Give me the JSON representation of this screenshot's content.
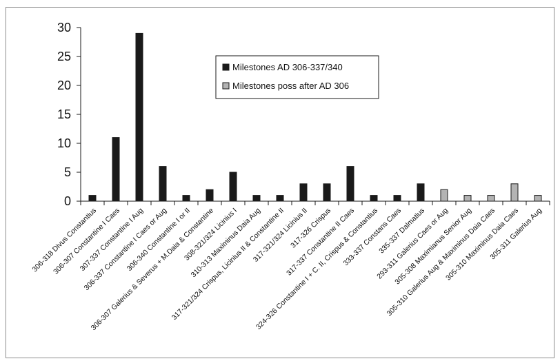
{
  "chart_data": {
    "type": "bar",
    "title": "",
    "xlabel": "",
    "ylabel": "",
    "ylim": [
      0,
      30
    ],
    "yticks": [
      0,
      5,
      10,
      15,
      20,
      25,
      30
    ],
    "grid": false,
    "legend_position": "top-center",
    "categories": [
      "306-318 Divus Constantius",
      "306-307 Constantine I Caes",
      "307-337 Constantine I Aug",
      "306-337 Constantine I Caes or Aug",
      "306-340 Constantine I or II",
      "306-307 Galerius & Severus + M.Daia & Constantine",
      "308-321/324 Licinius I",
      "310-313 Maximinus Daia Aug",
      "317-321/324 Crispus, Licinius II & Constantine II",
      "317-321/324 Licinius II",
      "317-326 Crispus",
      "317-337 Constantine II Caes",
      "324-326 Constantine I + C. II, Crispus & Constantius",
      "333-337 Constans Caes",
      "335-337 Dalmatius",
      "293-311 Galerius Caes or Aug",
      "305-308 Maximianus Senior Aug",
      "305-310 Galerius Aug & Maximinus Daia Caes",
      "305-310 Maximinus Daia Caes",
      "305-311 Galerius Aug"
    ],
    "series": [
      {
        "name": "Milestones AD 306-337/340",
        "color": "#1a1a1a",
        "values": [
          1,
          11,
          29,
          6,
          1,
          2,
          5,
          1,
          1,
          3,
          3,
          6,
          1,
          1,
          3,
          0,
          0,
          0,
          0,
          0
        ]
      },
      {
        "name": "Milestones poss after AD 306",
        "color": "#b3b3b3",
        "values": [
          0,
          0,
          0,
          0,
          0,
          0,
          0,
          0,
          0,
          0,
          0,
          0,
          0,
          0,
          0,
          2,
          1,
          1,
          3,
          1
        ]
      }
    ]
  }
}
